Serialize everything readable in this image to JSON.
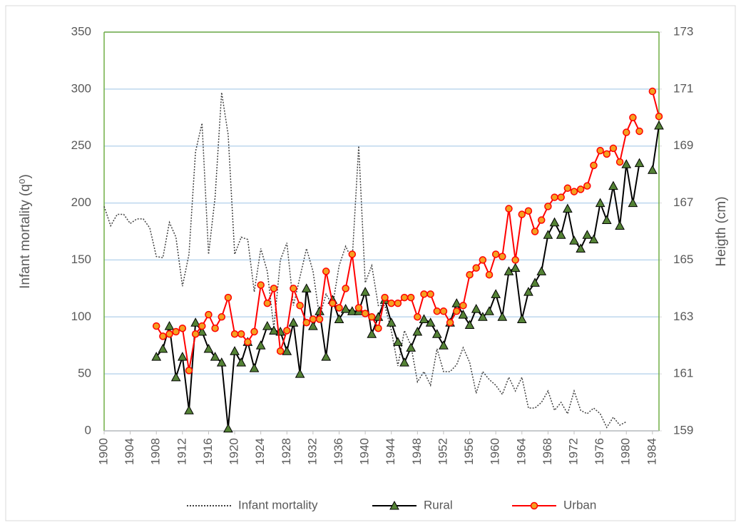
{
  "chart_data": {
    "type": "line",
    "y_label": "Infant mortality (q⁰)",
    "y2_label": "Heigth (cm)",
    "x": [
      1900,
      1901,
      1902,
      1903,
      1904,
      1905,
      1906,
      1907,
      1908,
      1909,
      1910,
      1911,
      1912,
      1913,
      1914,
      1915,
      1916,
      1917,
      1918,
      1919,
      1920,
      1921,
      1922,
      1923,
      1924,
      1925,
      1926,
      1927,
      1928,
      1929,
      1930,
      1931,
      1932,
      1933,
      1934,
      1935,
      1936,
      1937,
      1938,
      1939,
      1940,
      1941,
      1942,
      1943,
      1944,
      1945,
      1946,
      1947,
      1948,
      1949,
      1950,
      1951,
      1952,
      1953,
      1954,
      1955,
      1956,
      1957,
      1958,
      1959,
      1960,
      1961,
      1962,
      1963,
      1964,
      1965,
      1966,
      1967,
      1968,
      1969,
      1970,
      1971,
      1972,
      1973,
      1974,
      1975,
      1976,
      1977,
      1978,
      1979,
      1980,
      1981,
      1982,
      1983,
      1984,
      1985
    ],
    "xlim": [
      1900,
      1985
    ],
    "xticks": [
      1900,
      1904,
      1908,
      1912,
      1916,
      1920,
      1924,
      1928,
      1932,
      1936,
      1940,
      1944,
      1948,
      1952,
      1956,
      1960,
      1964,
      1968,
      1972,
      1976,
      1980,
      1984
    ],
    "ylim": [
      0,
      350
    ],
    "yticks": [
      0,
      50,
      100,
      150,
      200,
      250,
      300,
      350
    ],
    "y2lim": [
      159,
      173
    ],
    "y2ticks": [
      159,
      161,
      163,
      165,
      167,
      169,
      171,
      173
    ],
    "grid": true,
    "legend": "bottom",
    "series": [
      {
        "name": "Infant mortality",
        "color": "#404040",
        "style": "dotted",
        "values": [
          197,
          180,
          190,
          190,
          182,
          186,
          186,
          178,
          153,
          152,
          183,
          170,
          127,
          155,
          245,
          270,
          155,
          205,
          297,
          260,
          155,
          170,
          168,
          122,
          160,
          140,
          90,
          150,
          165,
          110,
          135,
          160,
          140,
          100,
          120,
          110,
          145,
          162,
          150,
          250,
          130,
          145,
          110,
          110,
          88,
          57,
          88,
          75,
          43,
          52,
          40,
          72,
          52,
          52,
          58,
          73,
          60,
          33,
          52,
          45,
          40,
          32,
          47,
          35,
          47,
          20,
          20,
          25,
          35,
          18,
          25,
          15,
          35,
          18,
          15,
          20,
          15,
          3,
          12,
          5,
          8,
          null,
          null,
          null,
          null,
          null
        ]
      },
      {
        "name": "Rural",
        "color": "#000000",
        "marker": "triangle",
        "marker_color": "#548235",
        "axis": "y2",
        "values": [
          null,
          null,
          null,
          null,
          null,
          null,
          null,
          null,
          161.6,
          161.88,
          162.68,
          160.88,
          161.6,
          159.72,
          162.8,
          162.48,
          161.88,
          161.6,
          161.4,
          159.08,
          161.8,
          161.4,
          162.12,
          161.2,
          162.0,
          162.68,
          162.52,
          162.48,
          161.8,
          162.8,
          161.0,
          164.0,
          162.68,
          163.2,
          161.6,
          163.6,
          162.92,
          163.28,
          163.2,
          163.2,
          163.88,
          162.4,
          163.0,
          163.6,
          162.8,
          162.12,
          161.4,
          161.92,
          162.48,
          162.92,
          162.8,
          162.4,
          162.0,
          162.8,
          163.48,
          163.08,
          162.72,
          163.28,
          163.0,
          163.2,
          163.8,
          163.0,
          164.6,
          164.72,
          162.92,
          163.88,
          164.2,
          164.6,
          165.88,
          166.32,
          165.88,
          166.8,
          165.68,
          165.4,
          165.88,
          165.72,
          167.0,
          166.4,
          167.6,
          166.2,
          168.36,
          167.0,
          168.4,
          null,
          168.16,
          169.72
        ]
      },
      {
        "name": "Urban",
        "color": "#ff0000",
        "marker": "circle",
        "marker_color": "#f4a020",
        "axis": "y2",
        "values": [
          null,
          null,
          null,
          null,
          null,
          null,
          null,
          null,
          162.68,
          162.32,
          162.4,
          162.48,
          162.6,
          161.12,
          162.4,
          162.68,
          163.08,
          162.6,
          163.0,
          163.68,
          162.4,
          162.4,
          162.12,
          162.48,
          164.12,
          163.48,
          164.0,
          161.8,
          162.52,
          164.0,
          163.4,
          162.8,
          162.92,
          162.92,
          164.6,
          163.48,
          163.32,
          164.0,
          165.2,
          163.32,
          163.12,
          163.0,
          162.6,
          163.68,
          163.48,
          163.48,
          163.68,
          163.68,
          163.0,
          163.8,
          163.8,
          163.2,
          163.2,
          162.8,
          163.2,
          163.4,
          164.48,
          164.72,
          165.0,
          164.48,
          165.2,
          165.12,
          166.8,
          165.0,
          166.6,
          166.72,
          166.0,
          166.4,
          166.88,
          167.2,
          167.2,
          167.52,
          167.4,
          167.48,
          167.6,
          168.32,
          168.84,
          168.72,
          168.92,
          168.44,
          169.48,
          170.0,
          169.52,
          null,
          170.92,
          170.04
        ]
      }
    ]
  }
}
